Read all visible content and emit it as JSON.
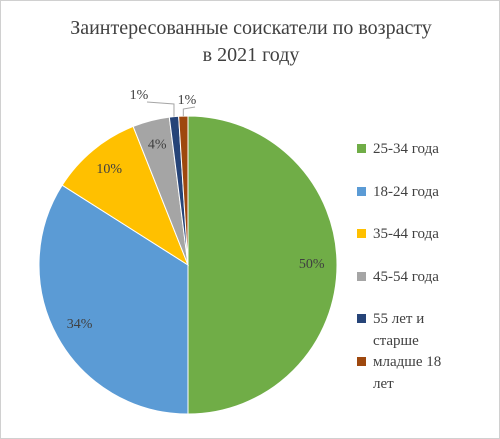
{
  "chart_data": {
    "type": "pie",
    "title": "Заинтересованные соискатели по возрасту в 2021 году",
    "categories": [
      "25-34 года",
      "18-24 года",
      "35-44 года",
      "45-54 года",
      "55 лет и старше",
      "младше 18 лет"
    ],
    "values": [
      50,
      34,
      10,
      4,
      1,
      1
    ],
    "value_labels": [
      "50%",
      "34%",
      "10%",
      "4%",
      "1%",
      "1%"
    ],
    "colors": [
      "#70ad47",
      "#5b9bd5",
      "#ffc000",
      "#a5a5a5",
      "#264478",
      "#9e480e"
    ],
    "legend": "right"
  }
}
